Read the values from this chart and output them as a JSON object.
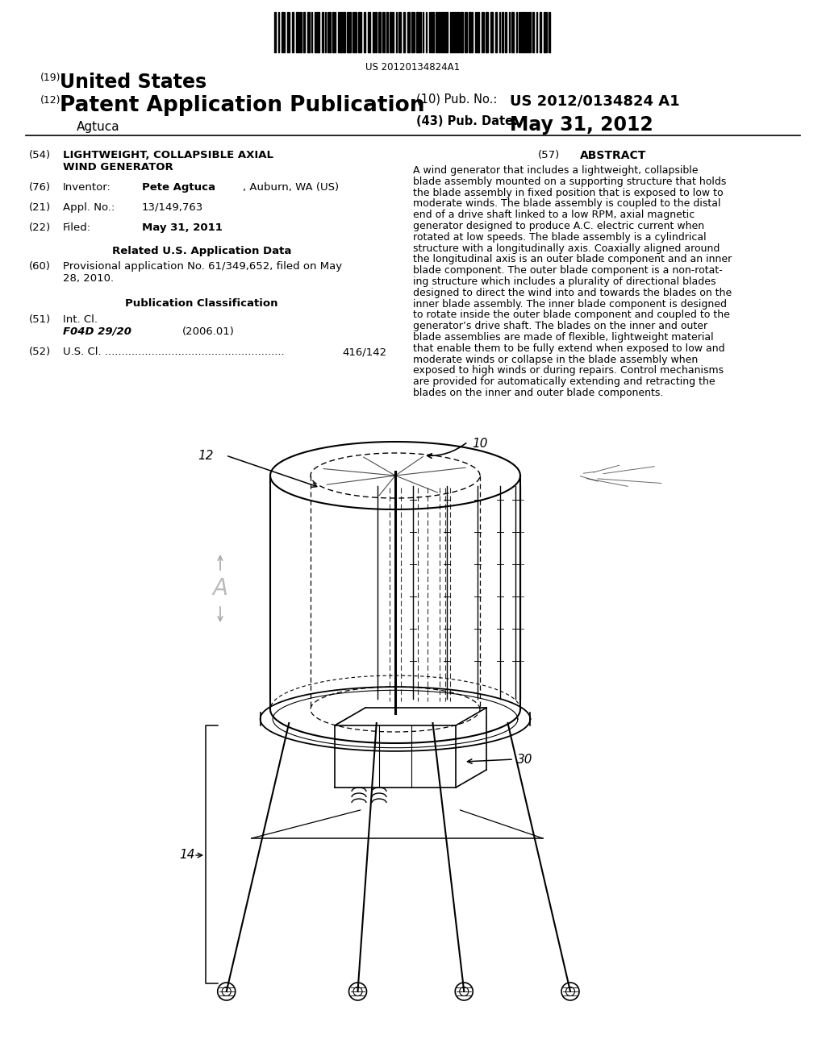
{
  "bg_color": "#ffffff",
  "barcode_text": "US 20120134824A1",
  "header_19": "(19)",
  "header_19_title": "United States",
  "header_12": "(12)",
  "header_12_title": "Patent Application Publication",
  "header_assignee": "Agtuca",
  "header_10_label": "(10) Pub. No.:",
  "header_10_value": "US 2012/0134824 A1",
  "header_43_label": "(43) Pub. Date:",
  "header_43_value": "May 31, 2012",
  "abstract_lines": [
    "A wind generator that includes a lightweight, collapsible",
    "blade assembly mounted on a supporting structure that holds",
    "the blade assembly in fixed position that is exposed to low to",
    "moderate winds. The blade assembly is coupled to the distal",
    "end of a drive shaft linked to a low RPM, axial magnetic",
    "generator designed to produce A.C. electric current when",
    "rotated at low speeds. The blade assembly is a cylindrical",
    "structure with a longitudinally axis. Coaxially aligned around",
    "the longitudinal axis is an outer blade component and an inner",
    "blade component. The outer blade component is a non-rotat-",
    "ing structure which includes a plurality of directional blades",
    "designed to direct the wind into and towards the blades on the",
    "inner blade assembly. The inner blade component is designed",
    "to rotate inside the outer blade component and coupled to the",
    "generator’s drive shaft. The blades on the inner and outer",
    "blade assemblies are made of flexible, lightweight material",
    "that enable them to be fully extend when exposed to low and",
    "moderate winds or collapse in the blade assembly when",
    "exposed to high winds or during repairs. Control mechanisms",
    "are provided for automatically extending and retracting the",
    "blades on the inner and outer blade components."
  ]
}
